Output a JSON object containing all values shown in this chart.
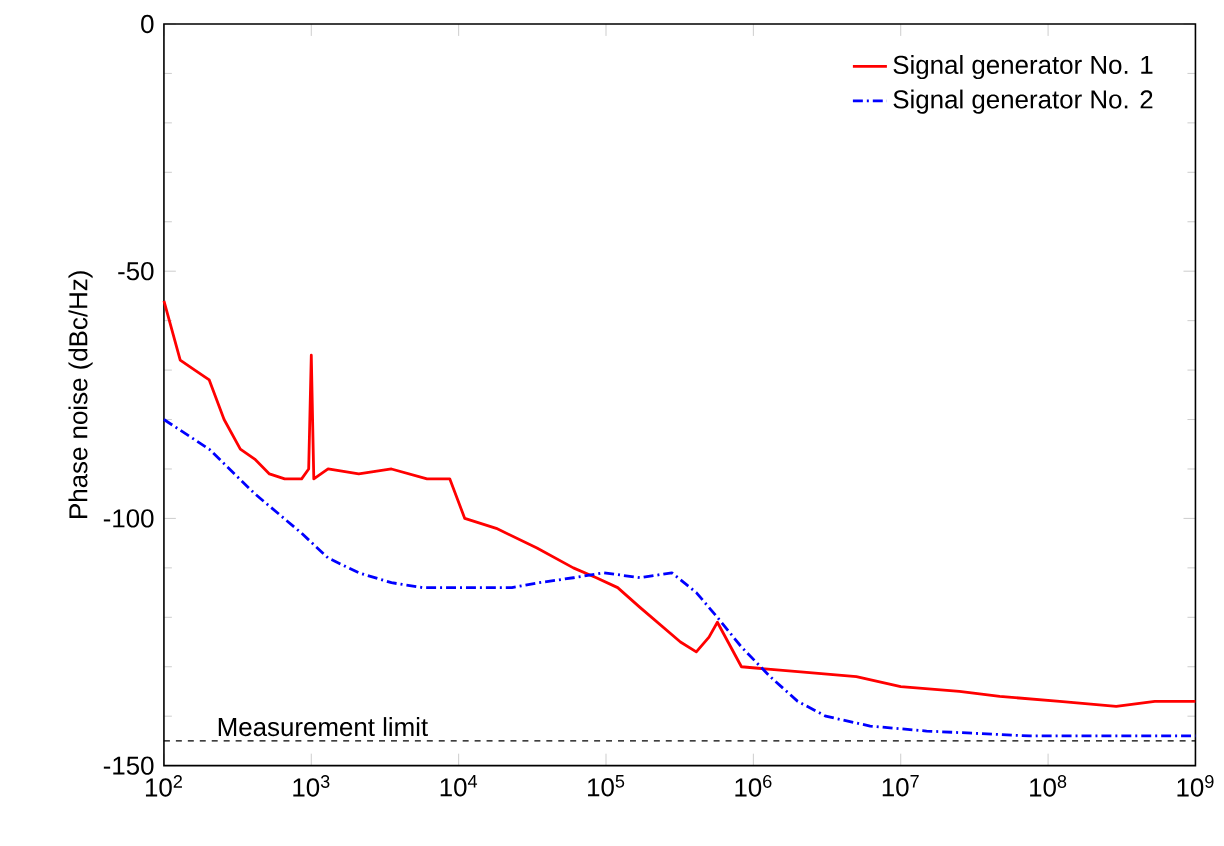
{
  "chart_data": {
    "type": "line",
    "ylabel": "Phase noise (dBc/Hz)",
    "log": "x",
    "xlim": [
      100,
      1000000000
    ],
    "ylim": [
      -150,
      0
    ],
    "xticks": [
      {
        "value": 100,
        "label": "10$^{2}$"
      },
      {
        "value": 1000,
        "label": "10$^{3}$"
      },
      {
        "value": 10000,
        "label": "10$^{4}$"
      },
      {
        "value": 100000,
        "label": "10$^{5}$"
      },
      {
        "value": 1000000,
        "label": "10$^{6}$"
      },
      {
        "value": 10000000,
        "label": "10$^{7}$"
      },
      {
        "value": 100000000,
        "label": "10$^{8}$"
      },
      {
        "value": 1000000000,
        "label": "10$^{9}$"
      }
    ],
    "yticks": [
      -150,
      -100,
      -50,
      0
    ],
    "legend": "top right",
    "grid": false,
    "marker": "none",
    "ref_lines": [
      {
        "axis": "y",
        "value": -145,
        "label": "Measurement limit",
        "color": "#000000",
        "line_style": "dashed"
      }
    ],
    "series": [
      {
        "name": "Signal generator No. 1",
        "color": "#ff0000",
        "line_style": "solid",
        "x": [
          100,
          129,
          162,
          203,
          256,
          330,
          413,
          520,
          660,
          860,
          960,
          1000,
          1040,
          1300,
          2100,
          3500,
          6100,
          8700,
          11000,
          18000,
          34000,
          60000,
          86000,
          120000,
          170000,
          320000,
          410000,
          500000,
          570000,
          830000,
          2000000,
          5000000,
          10000000,
          25000000,
          47000000,
          120000000,
          290000000,
          530000000,
          1000000000
        ],
        "values": [
          -56,
          -68,
          -70,
          -72,
          -80,
          -86,
          -88,
          -91,
          -92,
          -92,
          -90,
          -67,
          -92,
          -90,
          -91,
          -90,
          -92,
          -92,
          -100,
          -102,
          -106,
          -110,
          -112,
          -114,
          -118,
          -125,
          -127,
          -124,
          -121,
          -130,
          -131,
          -132,
          -134,
          -135,
          -136,
          -137,
          -138,
          -137,
          -137
        ]
      },
      {
        "name": "Signal generator No. 2",
        "color": "#0000ff",
        "line_style": "dashed",
        "x": [
          100,
          203,
          413,
          860,
          1300,
          2100,
          3500,
          5700,
          8700,
          14000,
          23000,
          35000,
          60000,
          97000,
          170000,
          280000,
          410000,
          570000,
          830000,
          1300000,
          2000000,
          3100000,
          6200000,
          15000000,
          75000000,
          370000000,
          1000000000
        ],
        "values": [
          -80,
          -86,
          -95,
          -103,
          -108,
          -111,
          -113,
          -114,
          -114,
          -114,
          -114,
          -113,
          -112,
          -111,
          -112,
          -111,
          -115,
          -120,
          -126,
          -132,
          -137,
          -140,
          -142,
          -143,
          -144,
          -144,
          -144
        ]
      }
    ]
  }
}
